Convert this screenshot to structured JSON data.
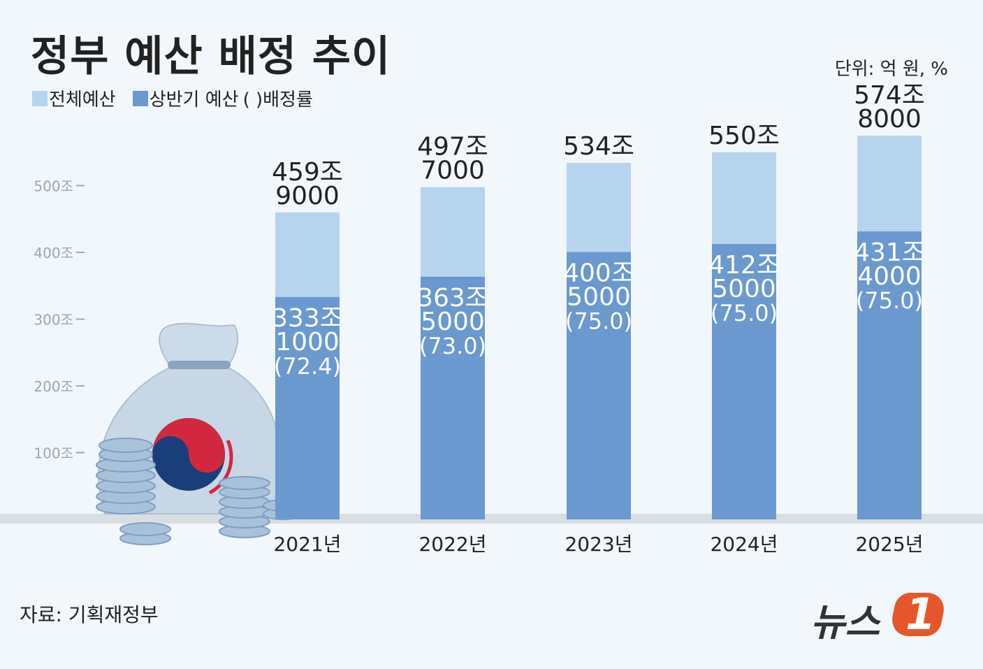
{
  "title": "정부 예산 배정 추이",
  "unit_note": "단위: 억 원, %",
  "legend": {
    "total_label": "전체예산",
    "half_label": "상반기 예산",
    "rate_note": "( )배정률"
  },
  "source": "자료: 기획재정부",
  "logo": {
    "text": "뉴스",
    "number": "1"
  },
  "colors": {
    "total": "#b7d4ee",
    "half": "#6b98cf",
    "logo_badge": "#e8552b"
  },
  "chart_data": {
    "type": "bar",
    "categories": [
      "2021년",
      "2022년",
      "2023년",
      "2024년",
      "2025년"
    ],
    "series": [
      {
        "name": "전체예산",
        "values": [
          4599000,
          4977000,
          5340000,
          5500000,
          5748000
        ],
        "labels": [
          [
            "459조",
            "9000"
          ],
          [
            "497조",
            "7000"
          ],
          [
            "534조"
          ],
          [
            "550조"
          ],
          [
            "574조",
            "8000"
          ]
        ]
      },
      {
        "name": "상반기 예산",
        "values": [
          3331000,
          3635000,
          4005000,
          4125000,
          4314000
        ],
        "labels": [
          [
            "333조",
            "1000"
          ],
          [
            "363조",
            "5000"
          ],
          [
            "400조",
            "5000"
          ],
          [
            "412조",
            "5000"
          ],
          [
            "431조",
            "4000"
          ]
        ]
      }
    ],
    "rates": [
      "(72.4)",
      "(73.0)",
      "(75.0)",
      "(75.0)",
      "(75.0)"
    ],
    "ylim": [
      0,
      6000000
    ],
    "yticks": [
      {
        "value": 1000000,
        "label": "100조"
      },
      {
        "value": 2000000,
        "label": "200조"
      },
      {
        "value": 3000000,
        "label": "300조"
      },
      {
        "value": 4000000,
        "label": "400조"
      },
      {
        "value": 5000000,
        "label": "500조"
      }
    ],
    "grid": false,
    "legend_position": "top-left"
  }
}
